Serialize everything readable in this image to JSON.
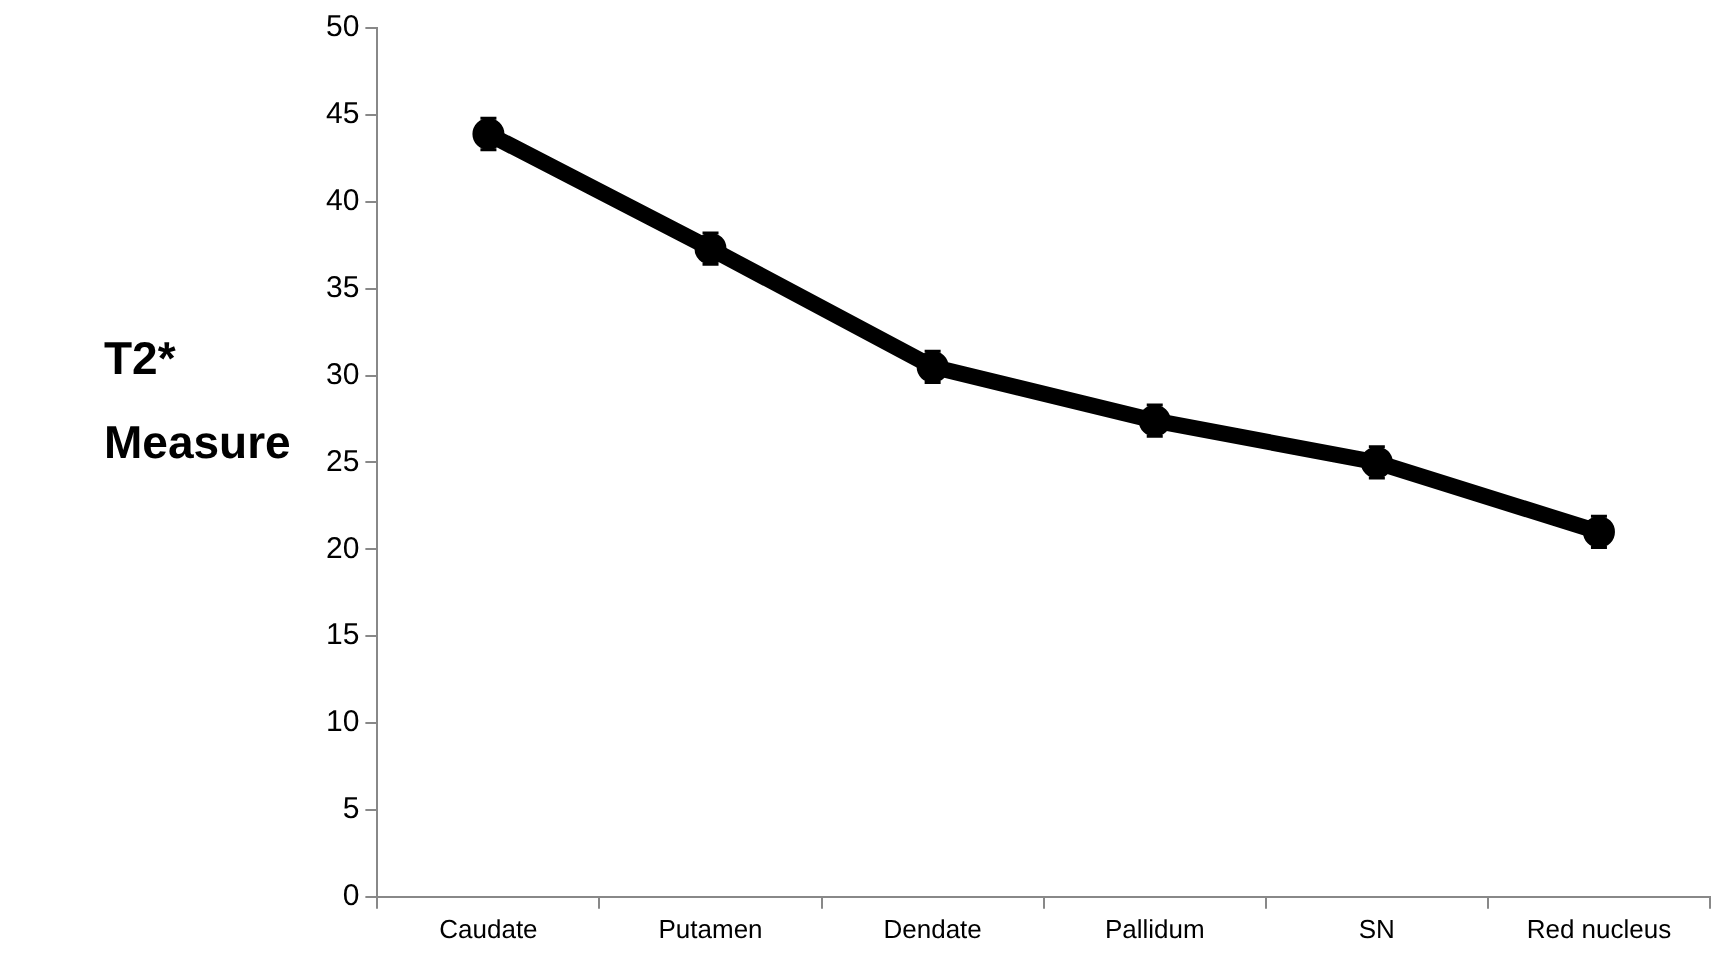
{
  "chart_data": {
    "type": "line",
    "ylabel": "T2* Measure",
    "categories": [
      "Caudate",
      "Putamen",
      "Dendate",
      "Pallidum",
      "SN",
      "Red nucleus"
    ],
    "values": [
      43.9,
      37.3,
      30.5,
      27.4,
      25.0,
      21.0
    ],
    "errors": [
      0.9,
      0.9,
      0.9,
      0.9,
      0.9,
      0.9
    ],
    "color": "#000000",
    "ylim": [
      0,
      50
    ],
    "yticks": [
      0,
      5,
      10,
      15,
      20,
      25,
      30,
      35,
      40,
      45,
      50
    ],
    "grid": false,
    "legend": false,
    "marker": "circle",
    "line_style": "solid"
  }
}
